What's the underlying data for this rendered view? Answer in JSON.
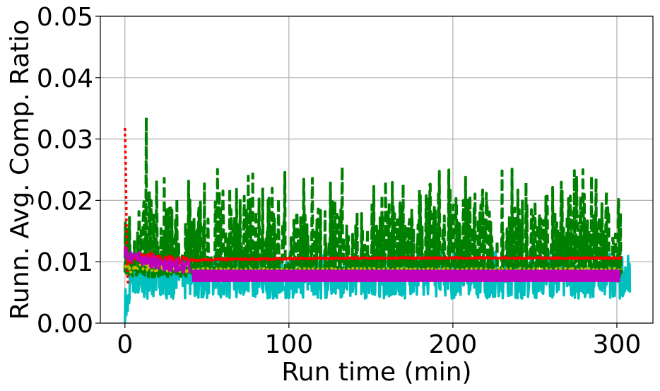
{
  "chart_data": {
    "type": "line",
    "title": "",
    "xlabel": "Run time (min)",
    "ylabel": "Runn. Avg. Comp. Ratio",
    "xlim": [
      -15,
      322
    ],
    "ylim": [
      0.0,
      0.05
    ],
    "x_ticks": [
      0,
      100,
      200,
      300
    ],
    "x_tick_labels": [
      "0",
      "100",
      "200",
      "300"
    ],
    "y_ticks": [
      0.0,
      0.01,
      0.02,
      0.03,
      0.04,
      0.05
    ],
    "y_tick_labels": [
      "0.00",
      "0.01",
      "0.02",
      "0.03",
      "0.04",
      "0.05"
    ],
    "grid": true,
    "legend": "none",
    "series": [
      {
        "color": "#00bfbf",
        "style": "solid",
        "x_range": [
          0,
          308
        ],
        "band_low": 0.004,
        "band_high": 0.012,
        "mean": 0.0075,
        "note_start_value": 0.0
      },
      {
        "color": "#008000",
        "style": "dashed",
        "x_range": [
          0,
          303
        ],
        "band_low": 0.0075,
        "band_high": 0.0265,
        "peak": [
          13,
          0.0335
        ],
        "mean": 0.009
      },
      {
        "color": "#ff0000",
        "style": "solid",
        "x_range": [
          0,
          303
        ],
        "points": [
          [
            0,
            0.0095
          ],
          [
            5,
            0.0105
          ],
          [
            15,
            0.011
          ],
          [
            30,
            0.0102
          ],
          [
            60,
            0.0104
          ],
          [
            100,
            0.0105
          ],
          [
            150,
            0.0106
          ],
          [
            200,
            0.0106
          ],
          [
            250,
            0.0106
          ],
          [
            303,
            0.0106
          ]
        ]
      },
      {
        "color": "#ff0000",
        "style": "dotted",
        "x_range": [
          0,
          2
        ],
        "points": [
          [
            0,
            0.0318
          ],
          [
            0.5,
            0.025
          ],
          [
            1,
            0.015
          ],
          [
            1.5,
            0.008
          ],
          [
            2,
            0.006
          ]
        ]
      },
      {
        "color": "#bfbf00",
        "style": "dotted",
        "x_range": [
          0,
          303
        ],
        "points": [
          [
            0,
            0.0098
          ],
          [
            3,
            0.0085
          ],
          [
            10,
            0.0093
          ],
          [
            20,
            0.009
          ],
          [
            40,
            0.0088
          ],
          [
            100,
            0.0088
          ],
          [
            200,
            0.0088
          ],
          [
            303,
            0.0088
          ]
        ]
      },
      {
        "color": "#bf00bf",
        "style": "solid",
        "x_range": [
          0,
          302
        ],
        "band_low": 0.0067,
        "band_high": 0.0087,
        "points": [
          [
            0,
            0.0115
          ],
          [
            10,
            0.0105
          ],
          [
            20,
            0.0098
          ],
          [
            40,
            0.009
          ],
          [
            41,
            0.0077
          ],
          [
            302,
            0.0077
          ]
        ]
      }
    ]
  }
}
